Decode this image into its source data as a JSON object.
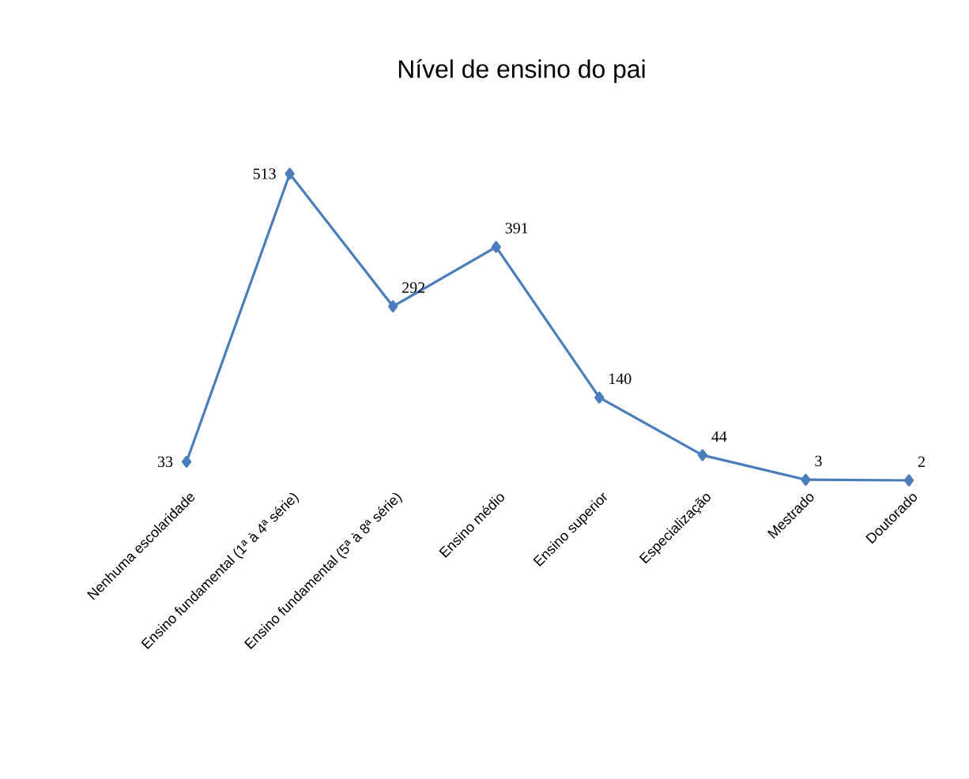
{
  "chart_data": {
    "type": "line",
    "title": "Nível de ensino do pai",
    "categories": [
      "Nenhuma escolaridade",
      "Ensino fundamental (1ª à 4ª série)",
      "Ensino fundamental (5ª à 8ª série)",
      "Ensino médio",
      "Ensino superior",
      "Especialização",
      "Mestrado",
      "Doutorado"
    ],
    "values": [
      33,
      513,
      292,
      391,
      140,
      44,
      3,
      2
    ],
    "color": "#4a7ebb",
    "marker": "diamond",
    "line_style": "solid",
    "data_labels": true
  }
}
